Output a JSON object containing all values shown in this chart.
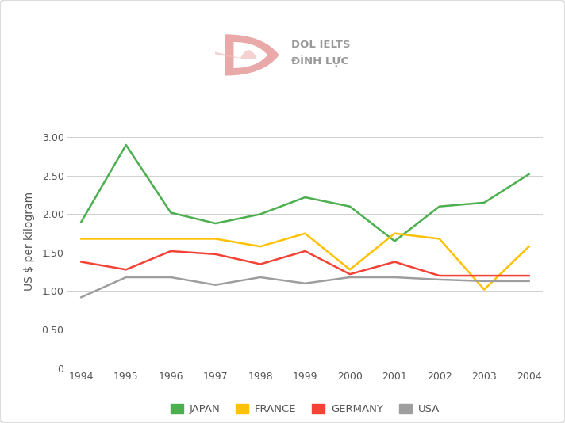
{
  "years": [
    1994,
    1995,
    1996,
    1997,
    1998,
    1999,
    2000,
    2001,
    2002,
    2003,
    2004
  ],
  "japan": [
    1.9,
    2.9,
    2.02,
    1.88,
    2.0,
    2.22,
    2.1,
    1.65,
    2.1,
    2.15,
    2.52
  ],
  "france": [
    1.68,
    1.68,
    1.68,
    1.68,
    1.58,
    1.75,
    1.28,
    1.75,
    1.68,
    1.02,
    1.58
  ],
  "germany": [
    1.38,
    1.28,
    1.52,
    1.48,
    1.35,
    1.52,
    1.22,
    1.38,
    1.2,
    1.2,
    1.2
  ],
  "usa": [
    0.92,
    1.18,
    1.18,
    1.08,
    1.18,
    1.1,
    1.18,
    1.18,
    1.15,
    1.13,
    1.13
  ],
  "colors": {
    "japan": "#4caf50",
    "france": "#ffc107",
    "germany": "#f44336",
    "usa": "#9e9e9e"
  },
  "ylabel": "US $ per kilogram",
  "ylim": [
    0,
    3.3
  ],
  "yticks": [
    0,
    0.5,
    1.0,
    1.5,
    2.0,
    2.5,
    3.0
  ],
  "background_color": "#ffffff",
  "grid_color": "#d0d0d0",
  "logo_color": "#e8a0a0",
  "text_color": "#999999",
  "logo_text": "DOL IELTS\nĐÌNH LỰC"
}
